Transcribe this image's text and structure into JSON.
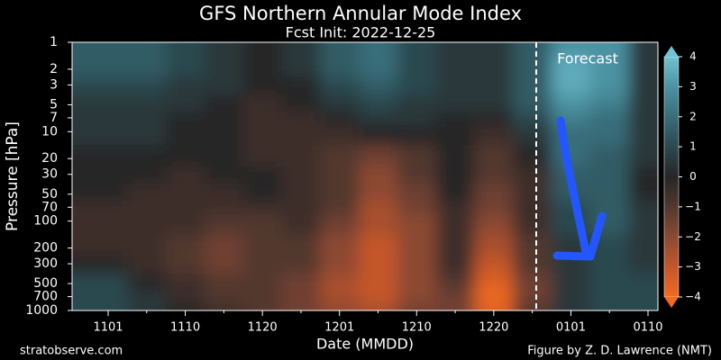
{
  "chart_data": {
    "type": "contour",
    "title": "GFS Northern Annular Mode Index",
    "subtitle": "Fcst Init: 2022-12-25",
    "x_label": "Date (MMDD)",
    "y_label": "Pressure [hPa]",
    "annotation": "Forecast",
    "source": "stratobserve.com",
    "credit": "Figure by Z. D. Lawrence (NMT)",
    "categories": [
      "1101",
      null,
      "1110",
      null,
      "1120",
      null,
      "1201",
      null,
      "1210",
      null,
      "1220",
      null,
      "0101",
      null,
      "0110"
    ],
    "y": [
      1,
      2,
      3,
      5,
      7,
      10,
      20,
      30,
      50,
      70,
      100,
      200,
      300,
      500,
      700,
      1000
    ],
    "ylim": [
      1000,
      1
    ],
    "log_y": true,
    "yticks": [
      1,
      2,
      3,
      5,
      7,
      10,
      20,
      30,
      50,
      70,
      100,
      200,
      300,
      500,
      700,
      1000
    ],
    "z": [
      [
        1.5,
        1.5,
        1,
        0.5,
        0,
        0.5,
        1.5,
        2,
        1,
        0.5,
        0.5,
        1.5,
        3,
        3,
        0.5
      ],
      [
        1.5,
        1.5,
        1,
        0.5,
        0,
        0.5,
        1.5,
        2,
        1,
        0.5,
        0.5,
        1.5,
        3.5,
        3,
        0.5
      ],
      [
        1,
        1,
        0.5,
        0.5,
        0,
        0,
        1,
        1.5,
        1,
        0.5,
        0.5,
        1.5,
        3.5,
        3,
        0.5
      ],
      [
        0.5,
        0.5,
        0.5,
        0,
        -0.5,
        0,
        0.5,
        1,
        0.5,
        0.5,
        0.5,
        1.5,
        3,
        2.5,
        0.5
      ],
      [
        0.5,
        0.5,
        0,
        0,
        -0.5,
        -0.5,
        0,
        0.5,
        0.5,
        0,
        0,
        1,
        2.5,
        2,
        0.5
      ],
      [
        0.5,
        0.5,
        0,
        0,
        -0.5,
        -0.5,
        -0.5,
        0,
        0,
        0,
        -0.5,
        0.5,
        2,
        2,
        0.5
      ],
      [
        0,
        0,
        0,
        0,
        -0.5,
        -0.5,
        -1,
        -1.5,
        -1,
        0,
        -1,
        0,
        2,
        1.5,
        0.5
      ],
      [
        0,
        0,
        -0.5,
        0,
        0,
        -0.5,
        -1,
        -2,
        -1,
        0,
        -1,
        -0.5,
        1.5,
        1.5,
        0
      ],
      [
        0,
        -0.5,
        -0.5,
        -0.5,
        0,
        -0.5,
        -1,
        -2,
        -1.5,
        0,
        -1.5,
        -0.5,
        1.5,
        1.5,
        0
      ],
      [
        -0.5,
        -0.5,
        -0.5,
        -0.5,
        -0.5,
        -0.5,
        -1,
        -2.5,
        -1.5,
        -0.5,
        -1.5,
        -0.5,
        1,
        1.5,
        0.5
      ],
      [
        -0.5,
        -0.5,
        -0.5,
        -1,
        -1,
        -0.5,
        -1.5,
        -2.5,
        -2,
        -0.5,
        -2,
        -0.5,
        1,
        1.5,
        0.5
      ],
      [
        -0.5,
        -0.5,
        -1,
        -1.5,
        -1,
        -1,
        -2,
        -3,
        -2,
        -0.5,
        -2.5,
        -1,
        0.5,
        1,
        0.5
      ],
      [
        0,
        -0.5,
        -1,
        -1.5,
        -1,
        -1,
        -2,
        -3,
        -2,
        -0.5,
        -3,
        -1,
        0.5,
        1,
        0.5
      ],
      [
        1,
        0,
        -0.5,
        -1,
        -1,
        -1.5,
        -2.5,
        -3,
        -2,
        -1,
        -3.5,
        -1.5,
        0.5,
        1,
        1
      ],
      [
        1,
        0.5,
        -0.5,
        -1,
        -1,
        -1.5,
        -2.5,
        -3,
        -2,
        -1.5,
        -4,
        -1.5,
        0.5,
        1,
        1
      ],
      [
        1,
        0.5,
        0,
        -0.5,
        -1,
        -1.5,
        -2,
        -2.5,
        -1.5,
        -1.5,
        -3.5,
        -1,
        0.5,
        1,
        1
      ]
    ],
    "clim": [
      -4,
      4
    ],
    "colorscale": [
      "#f26b1f",
      "#c4562b",
      "#8c4a33",
      "#52382f",
      "#262626",
      "#2c4950",
      "#396d7a",
      "#4c92a2",
      "#70c2d4"
    ],
    "cticks": [
      {
        "value": -4,
        "label": "−4"
      },
      {
        "value": -3,
        "label": "−3"
      },
      {
        "value": -2,
        "label": "−2"
      },
      {
        "value": -1,
        "label": "−1"
      },
      0,
      1,
      2,
      3,
      4
    ]
  }
}
